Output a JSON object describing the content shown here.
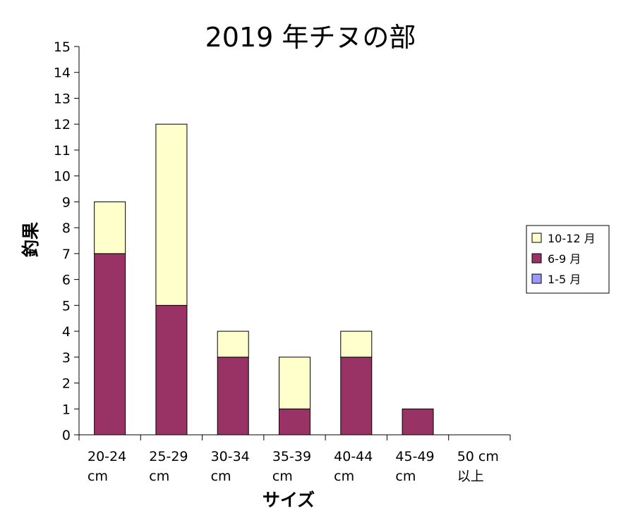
{
  "chart_data": {
    "type": "bar",
    "stacked": true,
    "title": "2019 年チヌの部",
    "xlabel": "サイズ",
    "ylabel": "釣果",
    "ylim": [
      0,
      15
    ],
    "yticks": [
      "0",
      "1",
      "2",
      "3",
      "4",
      "5",
      "6",
      "7",
      "8",
      "9",
      "10",
      "11",
      "12",
      "13",
      "14",
      "15"
    ],
    "grid": false,
    "legend_position": "right",
    "categories": [
      [
        "20-24",
        "cm"
      ],
      [
        "25-29",
        "cm"
      ],
      [
        "30-34",
        "cm"
      ],
      [
        "35-39",
        "cm"
      ],
      [
        "40-44",
        "cm"
      ],
      [
        "45-49",
        "cm"
      ],
      [
        "50 cm",
        "以上"
      ]
    ],
    "series": [
      {
        "name": "1-5 月",
        "color": "#9999ff",
        "values": [
          0,
          0,
          0,
          0,
          0,
          0,
          0
        ]
      },
      {
        "name": "6-9 月",
        "color": "#993366",
        "values": [
          7,
          5,
          3,
          1,
          3,
          1,
          0
        ]
      },
      {
        "name": "10-12 月",
        "color": "#ffffcc",
        "values": [
          2,
          7,
          1,
          2,
          1,
          0,
          0
        ]
      }
    ],
    "legend_order": [
      "10-12 月",
      "6-9 月",
      "1-5 月"
    ]
  }
}
